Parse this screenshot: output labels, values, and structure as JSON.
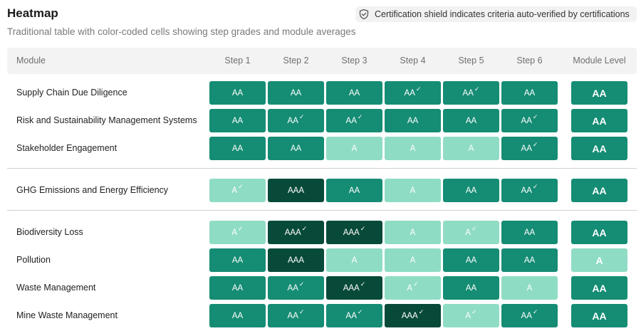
{
  "header": {
    "title": "Heatmap",
    "subtitle": "Traditional table with color-coded cells showing step grades and module averages",
    "legend_icon": "shield-check-icon",
    "legend_text": "Certification shield indicates criteria auto-verified by certifications"
  },
  "table": {
    "columns": [
      "Module",
      "Step 1",
      "Step 2",
      "Step 3",
      "Step 4",
      "Step 5",
      "Step 6",
      "Module Level"
    ],
    "grade_colors": {
      "A": "#8fdcc5",
      "AA": "#158c74",
      "AAA": "#084a39"
    },
    "grade_text_colors": {
      "A": "#ffffff",
      "AA": "#ffffff",
      "AAA": "#ffffff"
    },
    "check_glyph": "✓",
    "groups": [
      {
        "rows": [
          {
            "module": "Supply Chain Due Diligence",
            "steps": [
              {
                "g": "AA",
                "v": false
              },
              {
                "g": "AA",
                "v": false
              },
              {
                "g": "AA",
                "v": false
              },
              {
                "g": "AA",
                "v": true
              },
              {
                "g": "AA",
                "v": true
              },
              {
                "g": "AA",
                "v": false
              }
            ],
            "level": "AA"
          },
          {
            "module": "Risk and Sustainability Management Systems",
            "steps": [
              {
                "g": "AA",
                "v": false
              },
              {
                "g": "AA",
                "v": true
              },
              {
                "g": "AA",
                "v": true
              },
              {
                "g": "AA",
                "v": false
              },
              {
                "g": "AA",
                "v": false
              },
              {
                "g": "AA",
                "v": true
              }
            ],
            "level": "AA"
          },
          {
            "module": "Stakeholder Engagement",
            "steps": [
              {
                "g": "AA",
                "v": false
              },
              {
                "g": "AA",
                "v": false
              },
              {
                "g": "A",
                "v": false
              },
              {
                "g": "A",
                "v": false
              },
              {
                "g": "A",
                "v": false
              },
              {
                "g": "AA",
                "v": true
              }
            ],
            "level": "AA"
          }
        ]
      },
      {
        "rows": [
          {
            "module": "GHG Emissions and Energy Efficiency",
            "steps": [
              {
                "g": "A",
                "v": true
              },
              {
                "g": "AAA",
                "v": false
              },
              {
                "g": "AA",
                "v": false
              },
              {
                "g": "A",
                "v": false
              },
              {
                "g": "AA",
                "v": false
              },
              {
                "g": "AA",
                "v": true
              }
            ],
            "level": "AA"
          }
        ]
      },
      {
        "rows": [
          {
            "module": "Biodiversity Loss",
            "steps": [
              {
                "g": "A",
                "v": true
              },
              {
                "g": "AAA",
                "v": true
              },
              {
                "g": "AAA",
                "v": true
              },
              {
                "g": "A",
                "v": false
              },
              {
                "g": "A",
                "v": true
              },
              {
                "g": "AA",
                "v": false
              }
            ],
            "level": "AA"
          },
          {
            "module": "Pollution",
            "steps": [
              {
                "g": "AA",
                "v": false
              },
              {
                "g": "AAA",
                "v": false
              },
              {
                "g": "A",
                "v": false
              },
              {
                "g": "A",
                "v": false
              },
              {
                "g": "AA",
                "v": false
              },
              {
                "g": "AA",
                "v": false
              }
            ],
            "level": "A"
          },
          {
            "module": "Waste Management",
            "steps": [
              {
                "g": "AA",
                "v": false
              },
              {
                "g": "AA",
                "v": true
              },
              {
                "g": "AAA",
                "v": true
              },
              {
                "g": "A",
                "v": true
              },
              {
                "g": "AA",
                "v": false
              },
              {
                "g": "A",
                "v": false
              }
            ],
            "level": "AA"
          },
          {
            "module": "Mine Waste Management",
            "steps": [
              {
                "g": "AA",
                "v": false
              },
              {
                "g": "AA",
                "v": true
              },
              {
                "g": "AA",
                "v": true
              },
              {
                "g": "AAA",
                "v": true
              },
              {
                "g": "A",
                "v": true
              },
              {
                "g": "AA",
                "v": true
              }
            ],
            "level": "AA"
          }
        ]
      }
    ]
  }
}
